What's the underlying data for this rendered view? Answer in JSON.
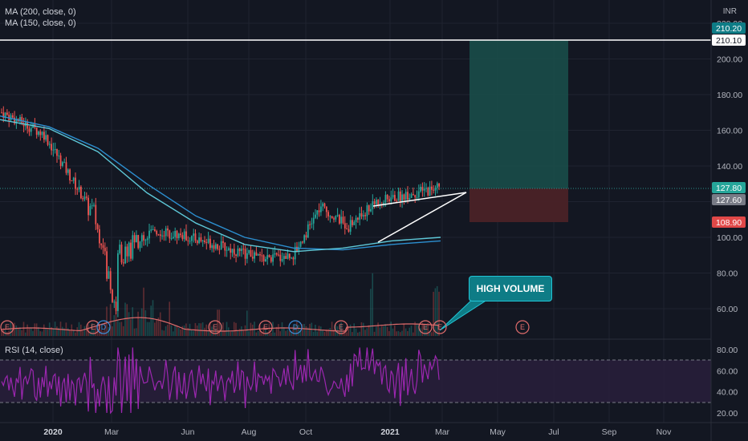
{
  "legend": {
    "ma200": "MA (200, close, 0)",
    "ma150": "MA (150, close, 0)",
    "rsi": "RSI (14, close)"
  },
  "currency": "INR",
  "callout": "HIGH VOLUME",
  "price_tags": {
    "target_top": "210.20",
    "resistance": "210.10",
    "last_close": "127.80",
    "entry": "127.60",
    "stop": "108.90"
  },
  "colors": {
    "background": "#131722",
    "ma200": "#2c8fd0",
    "ma150": "#5ec8d8",
    "candle_up": "#26a69a",
    "candle_down": "#ef5350",
    "rsi": "#9c27b0",
    "target_zone": "#1a4d49",
    "stop_zone": "#4a2227",
    "volume_ma": "#e06c6c"
  },
  "chart_data": {
    "type": "candlestick",
    "price_axis": {
      "ticks": [
        "220.00",
        "200.00",
        "180.00",
        "160.00",
        "140.00",
        "120.00",
        "100.00",
        "80.00",
        "60.00"
      ],
      "range": [
        40,
        230
      ]
    },
    "time_axis": {
      "ticks": [
        "2020",
        "Mar",
        "Jun",
        "Aug",
        "Oct",
        "2021",
        "Mar",
        "May",
        "Jul",
        "Sep",
        "Nov"
      ],
      "bold": [
        "2020",
        "2021"
      ]
    },
    "series": [
      {
        "name": "MA (200, close, 0)",
        "values_approx": [
          168,
          162,
          150,
          130,
          112,
          100,
          94,
          93,
          96,
          98
        ]
      },
      {
        "name": "MA (150, close, 0)",
        "values_approx": [
          166,
          161,
          148,
          125,
          108,
          96,
          92,
          94,
          98,
          100
        ]
      }
    ],
    "price_path": [
      [
        "2020-01",
        170
      ],
      [
        "2020-02",
        158
      ],
      [
        "2020-03",
        112
      ],
      [
        "2020-03",
        58
      ],
      [
        "2020-04",
        92
      ],
      [
        "2020-05",
        92
      ],
      [
        "2020-06",
        104
      ],
      [
        "2020-07",
        101
      ],
      [
        "2020-08",
        97
      ],
      [
        "2020-09",
        92
      ],
      [
        "2020-10",
        88
      ],
      [
        "2020-11",
        90
      ],
      [
        "2020-12",
        117
      ],
      [
        "2021-01",
        106
      ],
      [
        "2021-02",
        120
      ],
      [
        "2021-03",
        128
      ]
    ],
    "position": {
      "entry": 127.6,
      "target": 210.2,
      "stop": 108.9
    },
    "horizontal_line": 210.1,
    "rising_wedge": {
      "upper": [
        [
          "2020-12",
          117
        ],
        [
          "2021-03",
          125
        ]
      ],
      "lower": [
        [
          "2020-12",
          97
        ],
        [
          "2021-03",
          125
        ]
      ]
    },
    "rsi": {
      "levels": [
        70,
        30
      ],
      "range": [
        10,
        85
      ],
      "ticks": [
        "80.00",
        "60.00",
        "40.00",
        "20.00"
      ],
      "last": 72
    },
    "events": [
      "E",
      "E",
      "D",
      "E",
      "E",
      "D",
      "E",
      "E",
      "E",
      "E"
    ]
  }
}
